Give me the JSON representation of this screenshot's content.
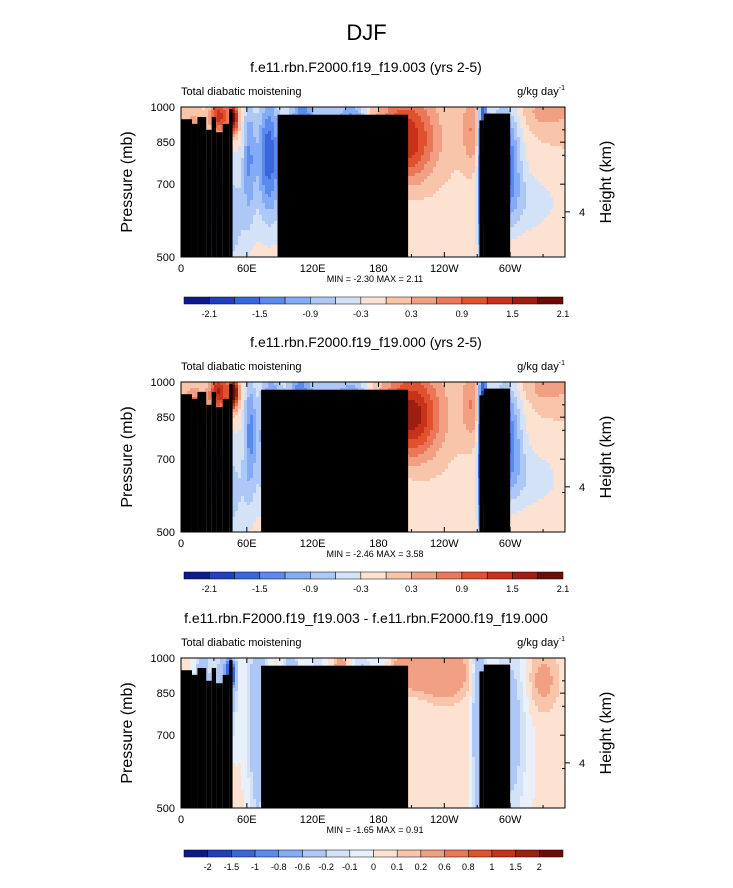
{
  "main_title": "DJF",
  "chart_data": [
    {
      "type": "heatmap",
      "title": "f.e11.rbn.F2000.f19_f19.003 (yrs 2-5)",
      "left_label": "Total diabatic moistening",
      "right_label_main": "g/kg day",
      "right_label_sup": "-1",
      "ylabel": "Pressure (mb)",
      "ylabel_right": "Height (km)",
      "y_ticks": [
        "500",
        "700",
        "850",
        "1000"
      ],
      "y_right_ticks": [
        "4"
      ],
      "x_ticks": [
        "0",
        "60E",
        "120E",
        "180",
        "120W",
        "60W"
      ],
      "stats_text": "MIN = -2.30  MAX =  2.11",
      "colorbar_labels": [
        "-2.1",
        "-1.5",
        "-0.9",
        "-0.3",
        "0.3",
        "0.9",
        "1.5",
        "2.1"
      ],
      "colorbar_colors": [
        "#0d1a8c",
        "#1f3fbf",
        "#3a66dd",
        "#5b8aee",
        "#84abf5",
        "#adc8f7",
        "#d4e2f8",
        "#fde2d2",
        "#f8c4aa",
        "#f2a083",
        "#ea7858",
        "#e0512e",
        "#c8321b",
        "#9c1f12",
        "#6e0a07"
      ],
      "contour_levels": [
        -2.1,
        -1.8,
        -1.5,
        -1.2,
        -0.9,
        -0.6,
        -0.3,
        0,
        0.3,
        0.6,
        0.9,
        1.2,
        1.5,
        1.8,
        2.1
      ],
      "x_range": [
        0,
        350
      ],
      "y_range": [
        1000,
        500
      ],
      "y_scale": "log-pressure",
      "features": [
        {
          "lon": 20,
          "p": 640,
          "sx": 7,
          "sy": 0.3,
          "v": -0.9
        },
        {
          "lon": 32,
          "p": 680,
          "sx": 4,
          "sy": 0.1,
          "v": -1.5
        },
        {
          "lon": 45,
          "p": 600,
          "sx": 12,
          "sy": 0.25,
          "v": -0.7
        },
        {
          "lon": 35,
          "p": 960,
          "sx": 6,
          "sy": 0.06,
          "v": 1.4
        },
        {
          "lon": 48,
          "p": 950,
          "sx": 3,
          "sy": 0.05,
          "v": 2.0
        },
        {
          "lon": 15,
          "p": 880,
          "sx": 8,
          "sy": 0.08,
          "v": 0.9
        },
        {
          "lon": 62,
          "p": 810,
          "sx": 4,
          "sy": 0.2,
          "v": -1.0
        },
        {
          "lon": 80,
          "p": 810,
          "sx": 8,
          "sy": 0.2,
          "v": -1.7
        },
        {
          "lon": 110,
          "p": 820,
          "sx": 8,
          "sy": 0.22,
          "v": -1.7
        },
        {
          "lon": 140,
          "p": 760,
          "sx": 18,
          "sy": 0.3,
          "v": -1.0
        },
        {
          "lon": 158,
          "p": 790,
          "sx": 8,
          "sy": 0.14,
          "v": -2.2
        },
        {
          "lon": 148,
          "p": 600,
          "sx": 55,
          "sy": 0.16,
          "v": -0.45
        },
        {
          "lon": 205,
          "p": 860,
          "sx": 18,
          "sy": 0.14,
          "v": 1.5
        },
        {
          "lon": 275,
          "p": 760,
          "sx": 3,
          "sy": 0.4,
          "v": -2.0
        },
        {
          "lon": 265,
          "p": 900,
          "sx": 6,
          "sy": 0.12,
          "v": 0.6
        },
        {
          "lon": 295,
          "p": 790,
          "sx": 10,
          "sy": 0.18,
          "v": -1.6
        },
        {
          "lon": 310,
          "p": 640,
          "sx": 30,
          "sy": 0.12,
          "v": -0.5
        },
        {
          "lon": 335,
          "p": 975,
          "sx": 16,
          "sy": 0.05,
          "v": 0.45
        }
      ],
      "terrain": [
        [
          0,
          10,
          945
        ],
        [
          10,
          15,
          925
        ],
        [
          15,
          23,
          955
        ],
        [
          23,
          28,
          900
        ],
        [
          28,
          32,
          955
        ],
        [
          32,
          38,
          890
        ],
        [
          38,
          44,
          925
        ],
        [
          44,
          47,
          990
        ],
        [
          88,
          207,
          965
        ],
        [
          272,
          276,
          940
        ],
        [
          276,
          300,
          970
        ]
      ]
    },
    {
      "type": "heatmap",
      "title": "f.e11.rbn.F2000.f19_f19.000 (yrs 2-5)",
      "left_label": "Total diabatic moistening",
      "right_label_main": "g/kg day",
      "right_label_sup": "-1",
      "ylabel": "Pressure (mb)",
      "ylabel_right": "Height (km)",
      "y_ticks": [
        "500",
        "700",
        "850",
        "1000"
      ],
      "y_right_ticks": [
        "4"
      ],
      "x_ticks": [
        "0",
        "60E",
        "120E",
        "180",
        "120W",
        "60W"
      ],
      "stats_text": "MIN = -2.46  MAX =  3.58",
      "colorbar_labels": [
        "-2.1",
        "-1.5",
        "-0.9",
        "-0.3",
        "0.3",
        "0.9",
        "1.5",
        "2.1"
      ],
      "colorbar_colors": [
        "#0d1a8c",
        "#1f3fbf",
        "#3a66dd",
        "#5b8aee",
        "#84abf5",
        "#adc8f7",
        "#d4e2f8",
        "#fde2d2",
        "#f8c4aa",
        "#f2a083",
        "#ea7858",
        "#e0512e",
        "#c8321b",
        "#9c1f12",
        "#6e0a07"
      ],
      "contour_levels": [
        -2.1,
        -1.8,
        -1.5,
        -1.2,
        -0.9,
        -0.6,
        -0.3,
        0,
        0.3,
        0.6,
        0.9,
        1.2,
        1.5,
        1.8,
        2.1
      ],
      "x_range": [
        0,
        350
      ],
      "y_range": [
        1000,
        500
      ],
      "y_scale": "log-pressure",
      "features": [
        {
          "lon": 18,
          "p": 640,
          "sx": 7,
          "sy": 0.3,
          "v": -0.8
        },
        {
          "lon": 33,
          "p": 690,
          "sx": 4,
          "sy": 0.1,
          "v": -1.4
        },
        {
          "lon": 45,
          "p": 600,
          "sx": 12,
          "sy": 0.25,
          "v": -0.6
        },
        {
          "lon": 35,
          "p": 955,
          "sx": 6,
          "sy": 0.06,
          "v": 1.6
        },
        {
          "lon": 48,
          "p": 950,
          "sx": 3,
          "sy": 0.05,
          "v": 2.4
        },
        {
          "lon": 15,
          "p": 880,
          "sx": 8,
          "sy": 0.08,
          "v": 1.2
        },
        {
          "lon": 63,
          "p": 810,
          "sx": 4,
          "sy": 0.2,
          "v": -1.1
        },
        {
          "lon": 82,
          "p": 810,
          "sx": 8,
          "sy": 0.2,
          "v": -1.6
        },
        {
          "lon": 108,
          "p": 820,
          "sx": 8,
          "sy": 0.22,
          "v": -1.6
        },
        {
          "lon": 135,
          "p": 760,
          "sx": 16,
          "sy": 0.3,
          "v": -1.0
        },
        {
          "lon": 158,
          "p": 790,
          "sx": 9,
          "sy": 0.14,
          "v": -2.3
        },
        {
          "lon": 140,
          "p": 600,
          "sx": 55,
          "sy": 0.16,
          "v": -0.5
        },
        {
          "lon": 210,
          "p": 855,
          "sx": 18,
          "sy": 0.14,
          "v": 1.7
        },
        {
          "lon": 275,
          "p": 760,
          "sx": 3,
          "sy": 0.4,
          "v": -2.2
        },
        {
          "lon": 265,
          "p": 900,
          "sx": 6,
          "sy": 0.12,
          "v": 0.6
        },
        {
          "lon": 296,
          "p": 790,
          "sx": 10,
          "sy": 0.18,
          "v": -1.5
        },
        {
          "lon": 312,
          "p": 640,
          "sx": 30,
          "sy": 0.12,
          "v": -0.5
        },
        {
          "lon": 335,
          "p": 975,
          "sx": 16,
          "sy": 0.05,
          "v": 0.45
        }
      ],
      "terrain": [
        [
          0,
          10,
          945
        ],
        [
          10,
          15,
          925
        ],
        [
          15,
          23,
          955
        ],
        [
          23,
          28,
          900
        ],
        [
          28,
          32,
          955
        ],
        [
          32,
          38,
          890
        ],
        [
          38,
          44,
          925
        ],
        [
          44,
          47,
          990
        ],
        [
          73,
          207,
          965
        ],
        [
          272,
          276,
          940
        ],
        [
          276,
          300,
          970
        ]
      ]
    },
    {
      "type": "heatmap",
      "title": "f.e11.rbn.F2000.f19_f19.003 - f.e11.rbn.F2000.f19_f19.000",
      "left_label": "Total diabatic moistening",
      "right_label_main": "g/kg day",
      "right_label_sup": "-1",
      "ylabel": "Pressure (mb)",
      "ylabel_right": "Height (km)",
      "y_ticks": [
        "500",
        "700",
        "850",
        "1000"
      ],
      "y_right_ticks": [
        "4"
      ],
      "x_ticks": [
        "0",
        "60E",
        "120E",
        "180",
        "120W",
        "60W"
      ],
      "stats_text": "MIN = -1.65  MAX =  0.91",
      "colorbar_labels": [
        "-2",
        "-1.5",
        "-1",
        "-0.8",
        "-0.6",
        "-0.2",
        "-0.1",
        "0",
        "0.1",
        "0.2",
        "0.6",
        "0.8",
        "1",
        "1.5",
        "2"
      ],
      "colorbar_colors": [
        "#0d1a8c",
        "#1f3fbf",
        "#3a66dd",
        "#5b8aee",
        "#84abf5",
        "#adc8f7",
        "#d4e2f8",
        "#e8f0fb",
        "#fde2d2",
        "#f8c4aa",
        "#f2a083",
        "#ea7858",
        "#e0512e",
        "#c8321b",
        "#9c1f12",
        "#6e0a07"
      ],
      "contour_levels": [
        -2,
        -1.5,
        -1,
        -0.8,
        -0.6,
        -0.2,
        -0.1,
        0,
        0.1,
        0.2,
        0.6,
        0.8,
        1,
        1.5,
        2
      ],
      "x_range": [
        0,
        350
      ],
      "y_range": [
        1000,
        500
      ],
      "y_scale": "log-pressure",
      "features": [
        {
          "lon": 20,
          "p": 700,
          "sx": 5,
          "sy": 0.35,
          "v": -0.55
        },
        {
          "lon": 40,
          "p": 850,
          "sx": 6,
          "sy": 0.2,
          "v": -0.7
        },
        {
          "lon": 45,
          "p": 930,
          "sx": 3,
          "sy": 0.05,
          "v": -1.5
        },
        {
          "lon": 38,
          "p": 650,
          "sx": 5,
          "sy": 0.3,
          "v": 0.45
        },
        {
          "lon": 70,
          "p": 760,
          "sx": 6,
          "sy": 0.35,
          "v": -0.45
        },
        {
          "lon": 100,
          "p": 760,
          "sx": 5,
          "sy": 0.35,
          "v": -0.5
        },
        {
          "lon": 125,
          "p": 720,
          "sx": 5,
          "sy": 0.3,
          "v": -0.3
        },
        {
          "lon": 145,
          "p": 760,
          "sx": 4,
          "sy": 0.35,
          "v": 0.4
        },
        {
          "lon": 165,
          "p": 700,
          "sx": 5,
          "sy": 0.3,
          "v": -0.4
        },
        {
          "lon": 185,
          "p": 720,
          "sx": 8,
          "sy": 0.3,
          "v": -0.3
        },
        {
          "lon": 205,
          "p": 940,
          "sx": 15,
          "sy": 0.06,
          "v": 0.4
        },
        {
          "lon": 240,
          "p": 930,
          "sx": 15,
          "sy": 0.08,
          "v": 0.45
        },
        {
          "lon": 272,
          "p": 760,
          "sx": 4,
          "sy": 0.4,
          "v": -0.6
        },
        {
          "lon": 300,
          "p": 720,
          "sx": 10,
          "sy": 0.3,
          "v": -0.35
        },
        {
          "lon": 330,
          "p": 900,
          "sx": 10,
          "sy": 0.1,
          "v": 0.25
        }
      ],
      "terrain": [
        [
          0,
          10,
          945
        ],
        [
          10,
          15,
          925
        ],
        [
          15,
          23,
          955
        ],
        [
          23,
          28,
          900
        ],
        [
          28,
          32,
          955
        ],
        [
          32,
          38,
          890
        ],
        [
          38,
          44,
          925
        ],
        [
          44,
          47,
          990
        ],
        [
          73,
          207,
          965
        ],
        [
          272,
          276,
          940
        ],
        [
          276,
          300,
          970
        ]
      ]
    }
  ]
}
